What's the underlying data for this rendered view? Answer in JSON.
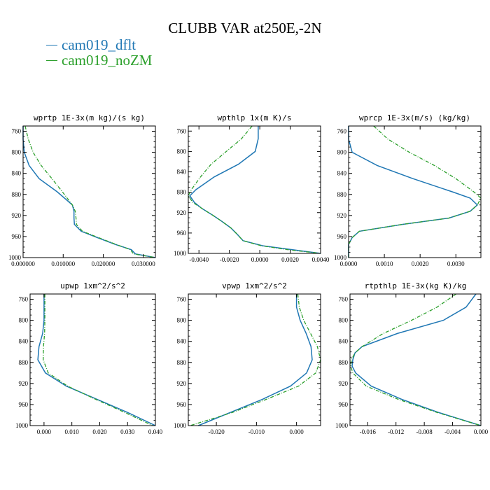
{
  "title": "CLUBB VAR at250E,-2N",
  "legend": [
    {
      "label": "cam019_dflt",
      "color": "#1f77b4",
      "dash": "solid"
    },
    {
      "label": "cam019_noZM",
      "color": "#2ca02c",
      "dash": "dashdot"
    }
  ],
  "chart_data": [
    {
      "type": "line",
      "title": "wprtp  1E-3x(m kg)/(s kg)",
      "xlim": [
        0,
        0.033
      ],
      "ylim": [
        1000,
        750
      ],
      "grid": false,
      "yticks": [
        760,
        800,
        840,
        880,
        920,
        960,
        1000
      ],
      "xticks": [
        0,
        0.01,
        0.02,
        0.03
      ],
      "xticklabels": [
        "0.000000",
        "0.010000",
        "0.020000",
        "0.030000"
      ],
      "y": [
        750,
        775,
        800,
        825,
        850,
        875,
        900,
        912,
        925,
        937,
        950,
        962,
        975,
        985,
        993,
        1000
      ],
      "series": [
        {
          "name": "cam019_dflt",
          "x": [
            0.0,
            0.0,
            0.0003,
            0.0015,
            0.004,
            0.0085,
            0.0123,
            0.0127,
            0.0127,
            0.0128,
            0.0145,
            0.0185,
            0.023,
            0.027,
            0.028,
            0.033
          ]
        },
        {
          "name": "cam019_noZM",
          "x": [
            0.0005,
            0.0013,
            0.0025,
            0.0045,
            0.0072,
            0.0098,
            0.0123,
            0.013,
            0.0132,
            0.0133,
            0.0148,
            0.0188,
            0.0232,
            0.0268,
            0.0275,
            0.033
          ]
        }
      ]
    },
    {
      "type": "line",
      "title": "wpthlp  1x(m K)/s",
      "xlim": [
        -0.0047,
        0.004
      ],
      "ylim": [
        1000,
        750
      ],
      "grid": false,
      "yticks": [
        760,
        800,
        840,
        880,
        920,
        960,
        1000
      ],
      "xticks": [
        -0.004,
        -0.002,
        0,
        0.002,
        0.004
      ],
      "xticklabels": [
        "-0.0040",
        "-0.0020",
        "0.0000",
        "0.0020",
        "0.0040"
      ],
      "y": [
        750,
        775,
        800,
        825,
        850,
        875,
        887,
        900,
        912,
        925,
        937,
        950,
        962,
        975,
        985,
        993,
        1000
      ],
      "series": [
        {
          "name": "cam019_dflt",
          "x": [
            -0.0001,
            -0.0001,
            -0.0003,
            -0.0014,
            -0.003,
            -0.0042,
            -0.0046,
            -0.0043,
            -0.0038,
            -0.0031,
            -0.0025,
            -0.0019,
            -0.0015,
            -0.0011,
            0.0002,
            0.0022,
            0.004
          ]
        },
        {
          "name": "cam019_noZM",
          "x": [
            -0.0005,
            -0.0012,
            -0.0022,
            -0.0032,
            -0.0039,
            -0.0045,
            -0.0047,
            -0.0044,
            -0.0038,
            -0.0031,
            -0.0025,
            -0.0019,
            -0.0015,
            -0.0011,
            0.0001,
            0.0019,
            0.004
          ]
        }
      ]
    },
    {
      "type": "line",
      "title": "wprcp  1E-3x(m/s) (kg/kg)",
      "xlim": [
        0,
        0.0037
      ],
      "ylim": [
        1000,
        750
      ],
      "grid": false,
      "yticks": [
        760,
        800,
        840,
        880,
        920,
        960,
        1000
      ],
      "xticks": [
        0,
        0.001,
        0.002,
        0.003
      ],
      "xticklabels": [
        "0.0000",
        "0.0010",
        "0.0020",
        "0.0030"
      ],
      "y": [
        750,
        775,
        800,
        825,
        850,
        875,
        887,
        900,
        912,
        925,
        937,
        950,
        962,
        975,
        1000
      ],
      "series": [
        {
          "name": "cam019_dflt",
          "x": [
            0.0,
            0.0,
            0.0001,
            0.0008,
            0.0018,
            0.0029,
            0.0034,
            0.0036,
            0.0034,
            0.0028,
            0.0015,
            0.0003,
            0.0001,
            0.0,
            0.0
          ]
        },
        {
          "name": "cam019_noZM",
          "x": [
            0.0007,
            0.0011,
            0.0017,
            0.0024,
            0.003,
            0.0035,
            0.0037,
            0.0036,
            0.0034,
            0.0028,
            0.0015,
            0.0003,
            0.0001,
            0.0,
            0.0
          ]
        }
      ]
    },
    {
      "type": "line",
      "title": "upwp  1xm^2/s^2",
      "xlim": [
        -0.005,
        0.04
      ],
      "ylim": [
        1000,
        750
      ],
      "grid": false,
      "yticks": [
        760,
        800,
        840,
        880,
        920,
        960,
        1000
      ],
      "xticks": [
        0,
        0.01,
        0.02,
        0.03,
        0.04
      ],
      "xticklabels": [
        "0.000",
        "0.010",
        "0.020",
        "0.030",
        "0.040"
      ],
      "y": [
        750,
        775,
        800,
        825,
        850,
        875,
        900,
        925,
        950,
        975,
        1000
      ],
      "series": [
        {
          "name": "cam019_dflt",
          "x": [
            0.0,
            0.0,
            0.0,
            -0.0005,
            -0.0018,
            -0.0022,
            0.0005,
            0.008,
            0.019,
            0.03,
            0.04
          ]
        },
        {
          "name": "cam019_noZM",
          "x": [
            0.0003,
            0.0003,
            0.0003,
            0.0002,
            -0.0002,
            -0.0003,
            0.0015,
            0.0085,
            0.0185,
            0.029,
            0.039
          ]
        }
      ]
    },
    {
      "type": "line",
      "title": "vpwp  1xm^2/s^2",
      "xlim": [
        -0.027,
        0.006
      ],
      "ylim": [
        1000,
        750
      ],
      "grid": false,
      "yticks": [
        760,
        800,
        840,
        880,
        920,
        960,
        1000
      ],
      "xticks": [
        -0.02,
        -0.01,
        0
      ],
      "xticklabels": [
        "-0.020",
        "-0.010",
        "0.000"
      ],
      "y": [
        750,
        775,
        800,
        825,
        850,
        875,
        900,
        925,
        950,
        975,
        1000
      ],
      "series": [
        {
          "name": "cam019_dflt",
          "x": [
            0.0,
            0.0,
            0.0009,
            0.0024,
            0.0036,
            0.0039,
            0.0025,
            -0.0015,
            -0.0085,
            -0.0165,
            -0.0245
          ]
        },
        {
          "name": "cam019_noZM",
          "x": [
            0.0003,
            0.0007,
            0.0018,
            0.0035,
            0.0052,
            0.006,
            0.0048,
            0.0005,
            -0.0075,
            -0.016,
            -0.0265
          ]
        }
      ]
    },
    {
      "type": "line",
      "title": "rtpthlp  1E-3x(kg K)/kg",
      "xlim": [
        -0.0185,
        0.0
      ],
      "ylim": [
        1000,
        750
      ],
      "grid": false,
      "yticks": [
        760,
        800,
        840,
        880,
        920,
        960,
        1000
      ],
      "xticks": [
        -0.016,
        -0.012,
        -0.008,
        -0.004,
        0
      ],
      "xticklabels": [
        "-0.016",
        "-0.012",
        "-0.008",
        "-0.004",
        "0.000"
      ],
      "y": [
        750,
        775,
        800,
        825,
        850,
        862,
        875,
        887,
        900,
        925,
        950,
        975,
        1000
      ],
      "series": [
        {
          "name": "cam019_dflt",
          "x": [
            -0.0007,
            -0.0021,
            -0.0053,
            -0.0118,
            -0.0168,
            -0.0178,
            -0.0181,
            -0.0182,
            -0.0177,
            -0.0155,
            -0.0112,
            -0.006,
            0.0
          ]
        },
        {
          "name": "cam019_noZM",
          "x": [
            -0.0035,
            -0.0062,
            -0.0098,
            -0.0138,
            -0.0168,
            -0.0178,
            -0.0183,
            -0.0184,
            -0.0181,
            -0.0162,
            -0.0117,
            -0.0062,
            0.0
          ]
        }
      ]
    }
  ]
}
